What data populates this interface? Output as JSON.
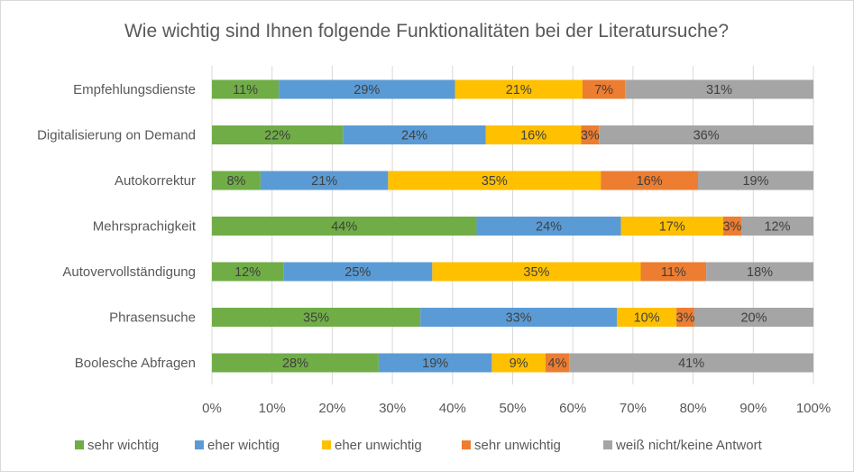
{
  "chart_data": {
    "type": "bar",
    "orientation": "horizontal",
    "stacked": "percent",
    "title": "Wie wichtig sind Ihnen folgende Funktionalitäten bei der Literatursuche?",
    "categories": [
      "Empfehlungsdienste",
      "Digitalisierung on Demand",
      "Autokorrektur",
      "Mehrsprachigkeit",
      "Autovervollständigung",
      "Phrasensuche",
      "Boolesche Abfragen"
    ],
    "series": [
      {
        "name": "sehr wichtig",
        "color": "#70ad47",
        "values": [
          11,
          22,
          8,
          44,
          12,
          35,
          28
        ]
      },
      {
        "name": "eher wichtig",
        "color": "#5b9bd5",
        "values": [
          29,
          24,
          21,
          24,
          25,
          33,
          19
        ]
      },
      {
        "name": "eher unwichtig",
        "color": "#ffc000",
        "values": [
          21,
          16,
          35,
          17,
          35,
          10,
          9
        ]
      },
      {
        "name": "sehr unwichtig",
        "color": "#ed7d31",
        "values": [
          7,
          3,
          16,
          3,
          11,
          3,
          4
        ]
      },
      {
        "name": "weiß nicht/keine Antwort",
        "color": "#a5a5a5",
        "values": [
          31,
          36,
          19,
          12,
          18,
          20,
          41
        ]
      }
    ],
    "data_labels": [
      [
        "11%",
        "22%",
        "8%",
        "44%",
        "12%",
        "35%",
        "28%"
      ],
      [
        "29%",
        "24%",
        "21%",
        "24%",
        "25%",
        "33%",
        "19%"
      ],
      [
        "21%",
        "16%",
        "35%",
        "17%",
        "35%",
        "10%",
        "9%"
      ],
      [
        "7%",
        "3%",
        "16%",
        "3%",
        "11%",
        "3%",
        "4%"
      ],
      [
        "31%",
        "36%",
        "19%",
        "12%",
        "18%",
        "20%",
        "41%"
      ]
    ],
    "xlim": [
      0,
      100
    ],
    "xticks": [
      "0%",
      "10%",
      "20%",
      "30%",
      "40%",
      "50%",
      "60%",
      "70%",
      "80%",
      "90%",
      "100%"
    ],
    "grid": true,
    "legend": "bottom"
  }
}
